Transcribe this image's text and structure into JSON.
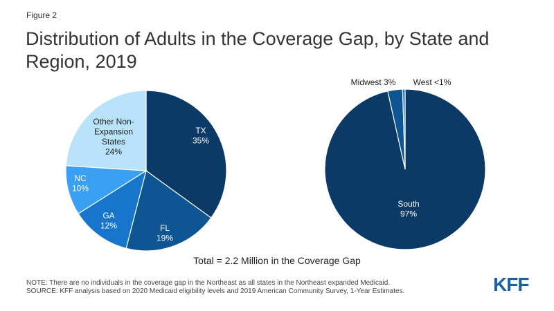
{
  "figure_label": "Figure 2",
  "title": "Distribution of Adults in the Coverage Gap, by State and Region, 2019",
  "total_label": "Total = 2.2 Million in the Coverage Gap",
  "notes": [
    "NOTE: There are no individuals in the coverage gap in the Northeast as all states in the Northeast expanded Medicaid.",
    "SOURCE: KFF analysis based on 2020 Medicaid eligibility levels and 2019 American Community Survey, 1-Year Estimates."
  ],
  "logo_text": "KFF",
  "chart_data": [
    {
      "type": "pie",
      "title": "",
      "slices": [
        {
          "label": "TX",
          "value": 35,
          "value_label": "35%",
          "color": "#0b3a66"
        },
        {
          "label": "FL",
          "value": 19,
          "value_label": "19%",
          "color": "#0e5594"
        },
        {
          "label": "GA",
          "value": 12,
          "value_label": "12%",
          "color": "#1776cc"
        },
        {
          "label": "NC",
          "value": 10,
          "value_label": "10%",
          "color": "#3aa0f3"
        },
        {
          "label": "Other Non-Expansion States",
          "value": 24,
          "value_label": "24%",
          "color": "#b9e2fb"
        }
      ]
    },
    {
      "type": "pie",
      "title": "",
      "slices": [
        {
          "label": "South",
          "value": 97,
          "value_label": "97%",
          "color": "#0b3a66"
        },
        {
          "label": "Midwest",
          "value": 3,
          "value_label": "3%",
          "color": "#0e5594"
        },
        {
          "label": "West",
          "value": 0.5,
          "value_label": "<1%",
          "color": "#1776cc"
        }
      ]
    }
  ]
}
